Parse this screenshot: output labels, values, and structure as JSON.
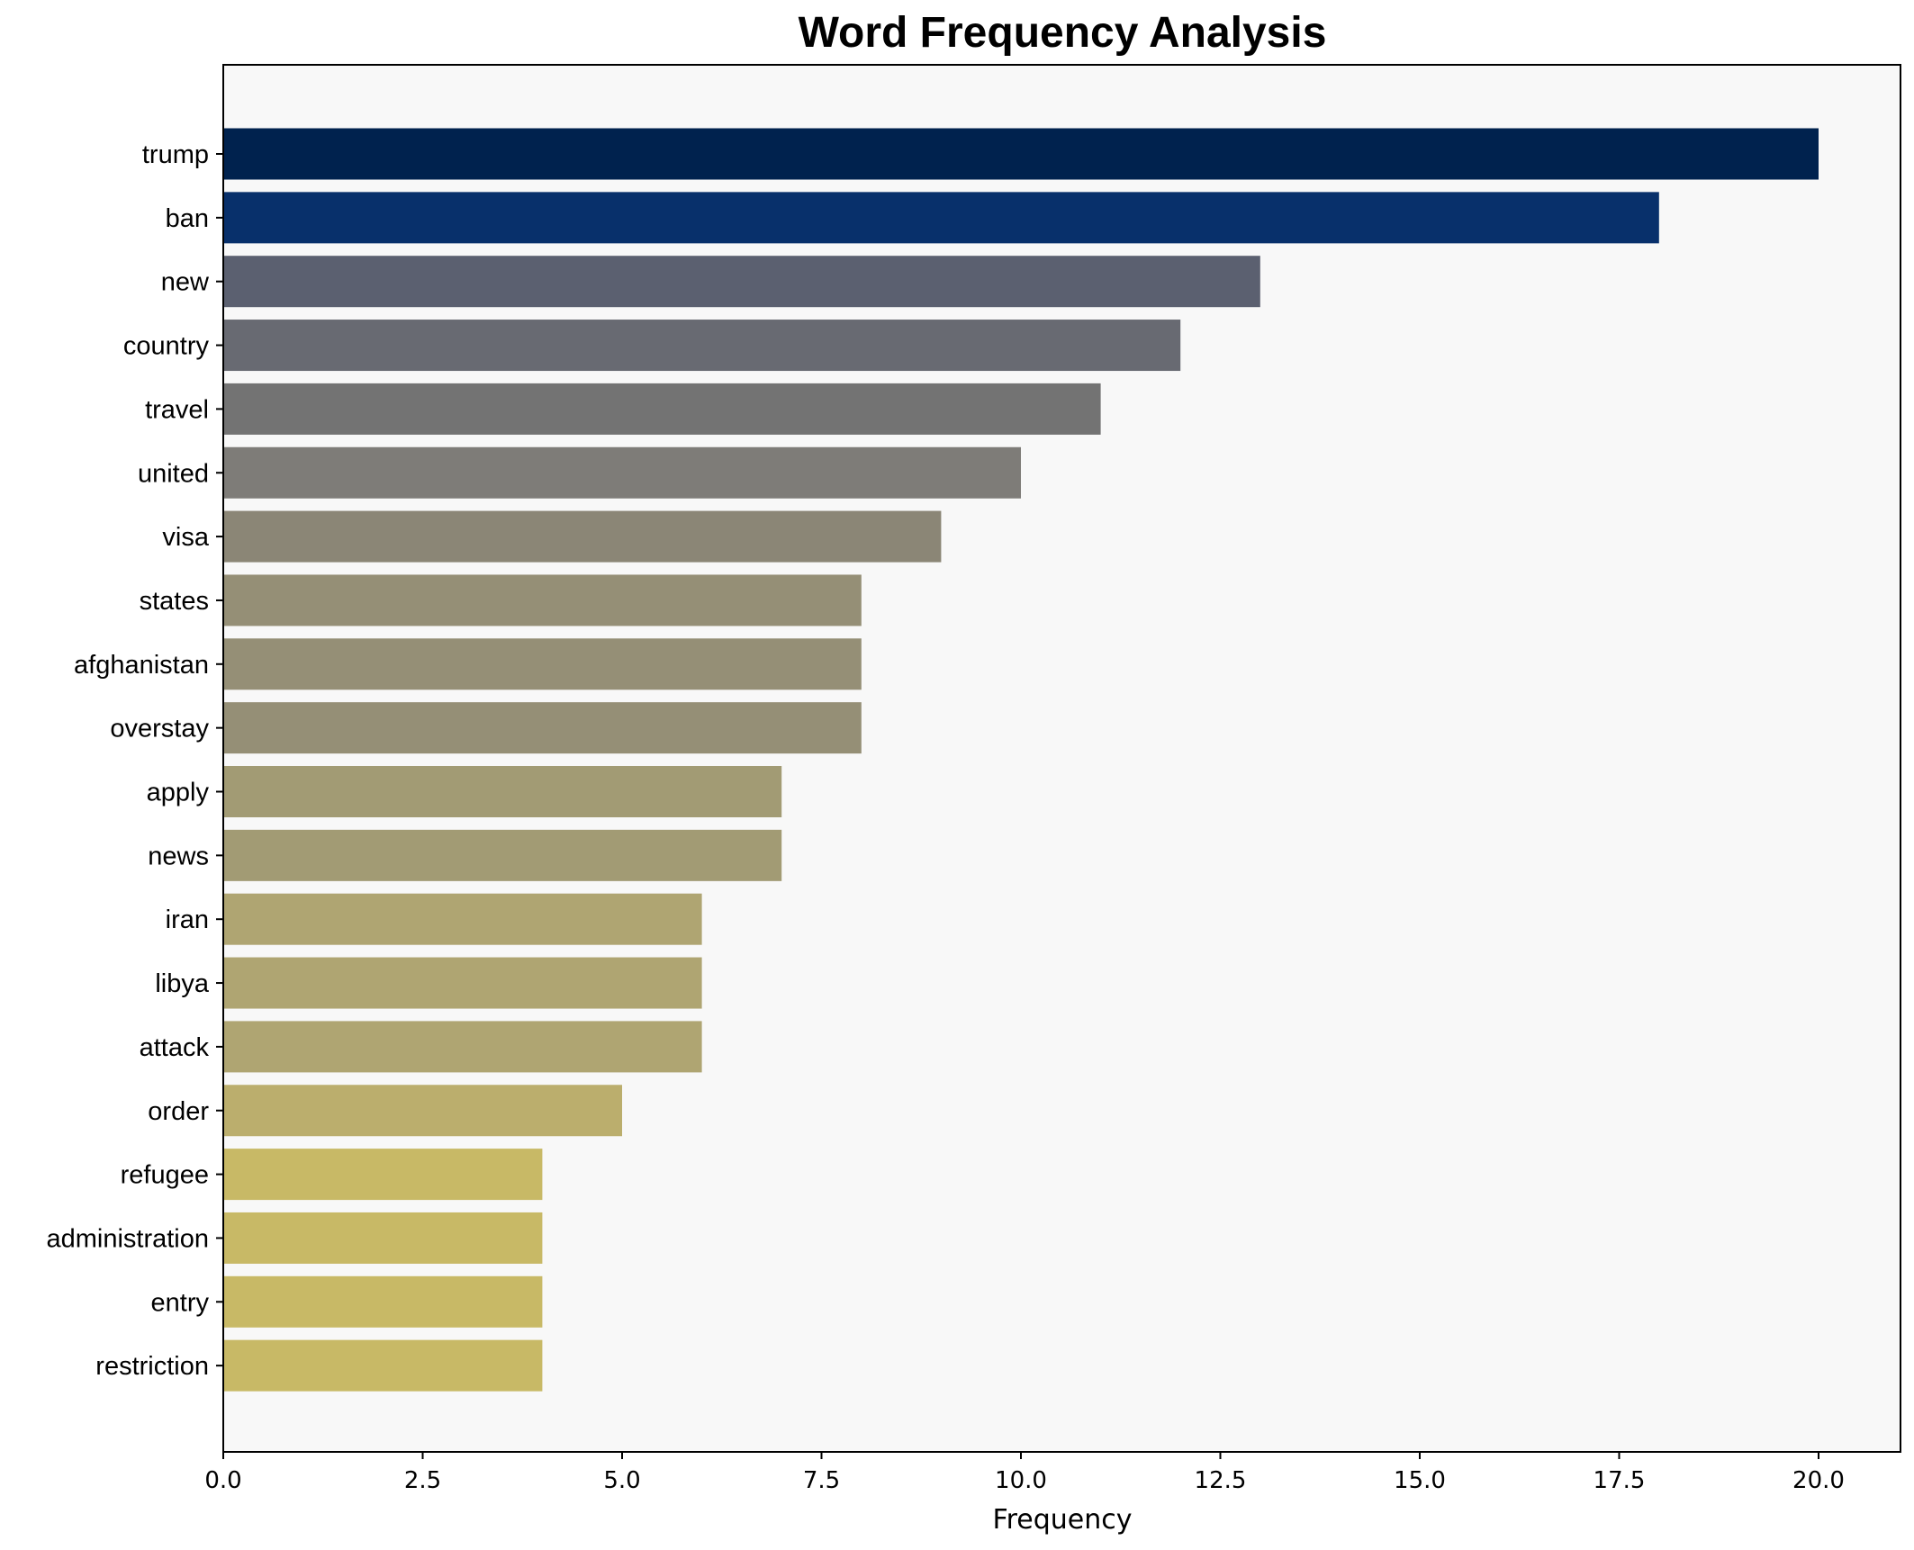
{
  "chart_data": {
    "type": "bar",
    "orientation": "horizontal",
    "title": "Word Frequency Analysis",
    "xlabel": "Frequency",
    "ylabel": "",
    "xlim": [
      0,
      21
    ],
    "x_ticks": [
      "0.0",
      "2.5",
      "5.0",
      "7.5",
      "10.0",
      "12.5",
      "15.0",
      "17.5",
      "20.0"
    ],
    "grid": false,
    "plot_background": "#f8f8f8",
    "categories": [
      "trump",
      "ban",
      "new",
      "country",
      "travel",
      "united",
      "visa",
      "states",
      "afghanistan",
      "overstay",
      "apply",
      "news",
      "iran",
      "libya",
      "attack",
      "order",
      "refugee",
      "administration",
      "entry",
      "restriction"
    ],
    "values": [
      20,
      18,
      13,
      12,
      11,
      10,
      9,
      8,
      8,
      8,
      7,
      7,
      6,
      6,
      6,
      5,
      4,
      4,
      4,
      4
    ],
    "colors": [
      "#00224e",
      "#08306b",
      "#5b6070",
      "#686a72",
      "#737373",
      "#7e7c78",
      "#8b8676",
      "#958f76",
      "#958f76",
      "#958f76",
      "#a29b74",
      "#a29b74",
      "#afa572",
      "#afa572",
      "#afa572",
      "#bbae6d",
      "#c8b966",
      "#c8b966",
      "#c8b966",
      "#c8b966"
    ]
  }
}
